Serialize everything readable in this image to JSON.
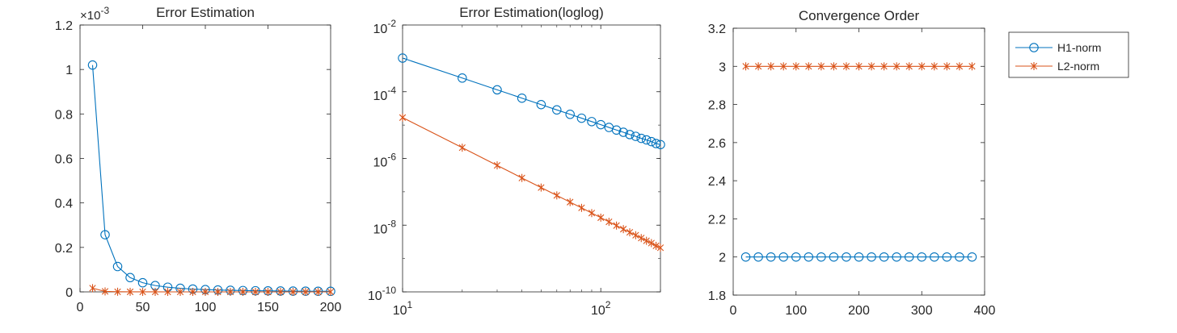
{
  "colors": {
    "h1": "#0072BD",
    "l2": "#D95319",
    "axis": "#262626",
    "background": "#ffffff"
  },
  "legend": {
    "h1_label": "H1-norm",
    "l2_label": "L2-norm",
    "placement": "outside-right-top"
  },
  "chart_data": [
    {
      "type": "line",
      "title": "Error Estimation",
      "xlabel": "",
      "ylabel": "",
      "xlim": [
        0,
        200
      ],
      "ylim": [
        0,
        0.0012
      ],
      "x_ticks": [
        "0",
        "50",
        "100",
        "150",
        "200"
      ],
      "y_ticks": [
        "0",
        "0.2",
        "0.4",
        "0.6",
        "0.8",
        "1",
        "1.2"
      ],
      "y_exponent_label": "×10",
      "y_exponent_power": "-3",
      "x": [
        10,
        20,
        30,
        40,
        50,
        60,
        70,
        80,
        90,
        100,
        110,
        120,
        130,
        140,
        150,
        160,
        170,
        180,
        190,
        200
      ],
      "series": [
        {
          "name": "H1-norm",
          "marker": "circle",
          "values": [
            0.00102,
            0.000257,
            0.000114,
            6.42e-05,
            4.11e-05,
            2.85e-05,
            2.1e-05,
            1.61e-05,
            1.27e-05,
            1.03e-05,
            8.5e-06,
            7.1e-06,
            6.1e-06,
            5.2e-06,
            4.6e-06,
            4e-06,
            3.6e-06,
            3.2e-06,
            2.8e-06,
            2.6e-06
          ]
        },
        {
          "name": "L2-norm",
          "marker": "asterisk",
          "values": [
            1.68e-05,
            2.1e-06,
            6.2e-07,
            2.6e-07,
            1.34e-07,
            7.8e-08,
            4.9e-08,
            3.3e-08,
            2.3e-08,
            1.68e-08,
            1.26e-08,
            9.7e-09,
            7.6e-09,
            6.1e-09,
            5e-09,
            4.1e-09,
            3.4e-09,
            2.9e-09,
            2.4e-09,
            2.1e-09
          ]
        }
      ]
    },
    {
      "type": "line",
      "scale": "loglog",
      "title": "Error Estimation(loglog)",
      "xlabel": "",
      "ylabel": "",
      "xlim": [
        10,
        200
      ],
      "ylim": [
        1e-10,
        0.01
      ],
      "x_ticks": [
        {
          "value": 10,
          "base": "10",
          "exp": "1"
        },
        {
          "value": 100,
          "base": "10",
          "exp": "2"
        }
      ],
      "y_ticks": [
        {
          "value": 1e-10,
          "base": "10",
          "exp": "-10"
        },
        {
          "value": 1e-08,
          "base": "10",
          "exp": "-8"
        },
        {
          "value": 1e-06,
          "base": "10",
          "exp": "-6"
        },
        {
          "value": 0.0001,
          "base": "10",
          "exp": "-4"
        },
        {
          "value": 0.01,
          "base": "10",
          "exp": "-2"
        }
      ],
      "x": [
        10,
        20,
        30,
        40,
        50,
        60,
        70,
        80,
        90,
        100,
        110,
        120,
        130,
        140,
        150,
        160,
        170,
        180,
        190,
        200
      ],
      "series": [
        {
          "name": "H1-norm",
          "marker": "circle",
          "values": [
            0.00102,
            0.000257,
            0.000114,
            6.42e-05,
            4.11e-05,
            2.85e-05,
            2.1e-05,
            1.61e-05,
            1.27e-05,
            1.03e-05,
            8.5e-06,
            7.1e-06,
            6.1e-06,
            5.2e-06,
            4.6e-06,
            4e-06,
            3.6e-06,
            3.2e-06,
            2.8e-06,
            2.6e-06
          ]
        },
        {
          "name": "L2-norm",
          "marker": "asterisk",
          "values": [
            1.68e-05,
            2.1e-06,
            6.2e-07,
            2.6e-07,
            1.34e-07,
            7.8e-08,
            4.9e-08,
            3.3e-08,
            2.3e-08,
            1.68e-08,
            1.26e-08,
            9.7e-09,
            7.6e-09,
            6.1e-09,
            5e-09,
            4.1e-09,
            3.4e-09,
            2.9e-09,
            2.4e-09,
            2.1e-09
          ]
        }
      ]
    },
    {
      "type": "line",
      "title": "Convergence Order",
      "xlabel": "",
      "ylabel": "",
      "xlim": [
        0,
        400
      ],
      "ylim": [
        1.8,
        3.2
      ],
      "x_ticks": [
        "0",
        "100",
        "200",
        "300",
        "400"
      ],
      "y_ticks": [
        "1.8",
        "2",
        "2.2",
        "2.4",
        "2.6",
        "2.8",
        "3",
        "3.2"
      ],
      "x": [
        20,
        40,
        60,
        80,
        100,
        120,
        140,
        160,
        180,
        200,
        220,
        240,
        260,
        280,
        300,
        320,
        340,
        360,
        380
      ],
      "series": [
        {
          "name": "H1-norm",
          "marker": "circle",
          "values": [
            2,
            2,
            2,
            2,
            2,
            2,
            2,
            2,
            2,
            2,
            2,
            2,
            2,
            2,
            2,
            2,
            2,
            2,
            2
          ]
        },
        {
          "name": "L2-norm",
          "marker": "asterisk",
          "values": [
            3,
            3,
            3,
            3,
            3,
            3,
            3,
            3,
            3,
            3,
            3,
            3,
            3,
            3,
            3,
            3,
            3,
            3,
            3
          ]
        }
      ]
    }
  ]
}
